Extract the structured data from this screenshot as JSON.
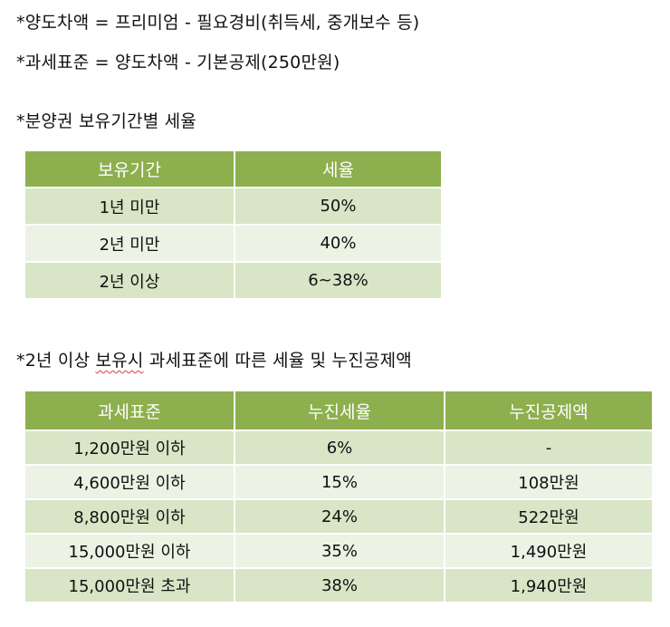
{
  "notes": {
    "line1": "*양도차액 = 프리미엄 - 필요경비(취득세, 중개보수 등)",
    "line2": "*과세표준 = 양도차액 - 기본공제(250만원)"
  },
  "section1": {
    "title": "*분양권 보유기간별 세율",
    "headers": [
      "보유기간",
      "세율"
    ],
    "rows": [
      [
        "1년 미만",
        "50%"
      ],
      [
        "2년 미만",
        "40%"
      ],
      [
        "2년 이상",
        "6~38%"
      ]
    ]
  },
  "section2": {
    "title_prefix": "*2년 이상 ",
    "title_spell": "보유시",
    "title_suffix": " 과세표준에 따른 세율 및 누진공제액",
    "headers": [
      "과세표준",
      "누진세율",
      "누진공제액"
    ],
    "rows": [
      [
        "1,200만원 이하",
        "6%",
        "-"
      ],
      [
        "4,600만원 이하",
        "15%",
        "108만원"
      ],
      [
        "8,800만원 이하",
        "24%",
        "522만원"
      ],
      [
        "15,000만원 이하",
        "35%",
        "1,490만원"
      ],
      [
        "15,000만원 초과",
        "38%",
        "1,940만원"
      ]
    ]
  },
  "colors": {
    "header_green": "#8daf4e",
    "row_dark": "#d8e5c6",
    "row_light": "#ecf2e4"
  }
}
